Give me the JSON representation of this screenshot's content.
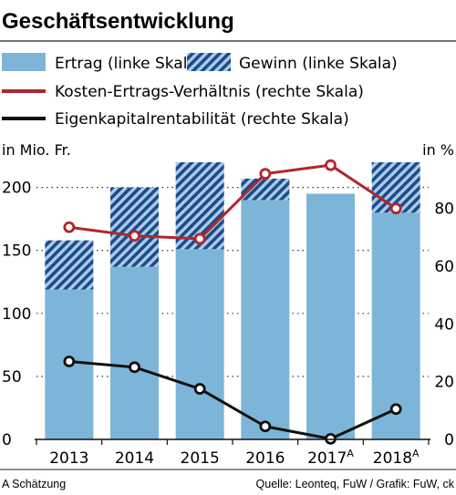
{
  "chart_data": {
    "type": "bar",
    "title": "Geschäftsentwicklung",
    "categories": [
      "2013",
      "2014",
      "2015",
      "2016",
      "2017",
      "2018"
    ],
    "category_superscripts": [
      "",
      "",
      "",
      "",
      "A",
      "A"
    ],
    "left_axis": {
      "label": "in Mio. Fr.",
      "ylim": [
        0,
        220
      ],
      "ticks": [
        0,
        50,
        100,
        150,
        200
      ]
    },
    "right_axis": {
      "label": "in %",
      "ylim": [
        0,
        96
      ],
      "ticks": [
        0,
        20,
        40,
        60,
        80
      ]
    },
    "grid": "dotted horizontal at left-axis ticks",
    "legend_position": "top",
    "series": [
      {
        "name": "Ertrag (linke Skala)",
        "kind": "bar",
        "axis": "left",
        "color": "#7db5d8",
        "values": [
          119,
          137,
          151,
          190,
          195,
          180
        ]
      },
      {
        "name": "Gewinn (linke Skala)",
        "kind": "bar-stacked-hatched",
        "axis": "left",
        "color": "#1e4a8c",
        "values": [
          39,
          63,
          69,
          17,
          0,
          40
        ]
      },
      {
        "name": "Kosten-Ertrags-Verhältnis (rechte Skala)",
        "kind": "line",
        "axis": "right",
        "color": "#b2262c",
        "values": [
          73.5,
          70.5,
          69.5,
          92,
          95,
          80
        ]
      },
      {
        "name": "Eigenkapitalrentabilität  (rechte Skala)",
        "kind": "line",
        "axis": "right",
        "color": "#111111",
        "values": [
          27,
          25,
          17.5,
          4.5,
          0.2,
          10.5
        ]
      }
    ]
  },
  "footnote_left": "A Schätzung",
  "footnote_right": "Quelle: Leonteq, FuW / Grafik: FuW, ck"
}
